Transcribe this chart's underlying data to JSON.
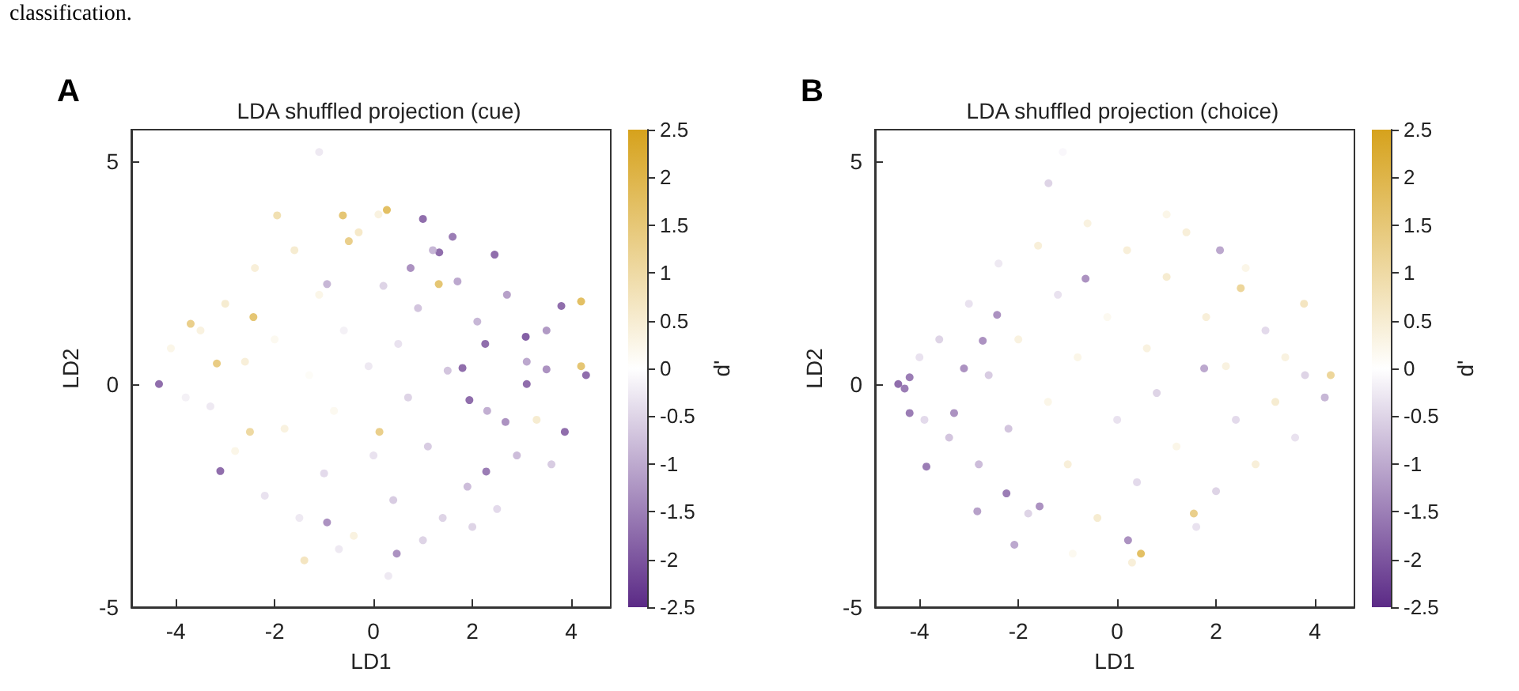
{
  "chart_data": [
    {
      "type": "scatter",
      "title": "LDA shuffled projection (cue)",
      "xlabel": "LD1",
      "ylabel": "LD2",
      "clabel": "d'",
      "annotations": [
        "classification.",
        "A"
      ],
      "marker": "circle",
      "grid": false,
      "xlim": [
        -4.9,
        4.8
      ],
      "ylim": [
        -5,
        5.7
      ],
      "xticks": [
        -4,
        -2,
        0,
        2,
        4
      ],
      "yticks": [
        -5,
        0,
        5
      ],
      "clim": [
        -2.5,
        2.5
      ],
      "cticks": [
        -2.5,
        -2,
        -1.5,
        -1,
        -0.5,
        0,
        0.5,
        1,
        1.5,
        2,
        2.5
      ],
      "x": [
        -4.34,
        -3.7,
        -1.1,
        0.27,
        1.0,
        2.45,
        4.2,
        4.2,
        4.3,
        3.8,
        -3.1,
        0.47,
        -1.4,
        0.3,
        -2.43,
        -3.17,
        3.87,
        -0.94,
        2.28,
        1.32,
        3.08,
        2.26,
        1.8,
        1.94,
        3.1,
        3.5,
        2.67,
        0.12,
        -2.5,
        -0.62,
        -1.95,
        -0.5,
        1.33,
        1.6,
        0.75,
        -0.94,
        -3.5,
        -3.3,
        -3.0,
        -2.8,
        -2.6,
        -2.4,
        -2.2,
        -2.0,
        -1.8,
        -1.6,
        -1.5,
        -1.3,
        -1.1,
        -1.0,
        -0.8,
        -0.6,
        -0.4,
        -0.3,
        -0.1,
        0.0,
        0.2,
        0.4,
        0.5,
        0.7,
        0.9,
        1.1,
        1.2,
        1.4,
        1.5,
        1.7,
        1.9,
        2.1,
        2.3,
        2.5,
        2.7,
        2.9,
        3.1,
        3.3,
        3.5,
        3.6,
        -3.8,
        -4.1,
        0.1,
        -0.7,
        1.0,
        2.0
      ],
      "values": [
        0.0,
        1.35,
        5.2,
        3.9,
        3.7,
        2.9,
        1.85,
        0.4,
        0.2,
        1.75,
        -1.95,
        -3.8,
        -3.95,
        -4.3,
        1.5,
        0.46,
        -1.07,
        -3.1,
        -1.96,
        2.24,
        1.06,
        0.9,
        0.36,
        -0.36,
        0.0,
        0.33,
        -0.85,
        -1.07,
        -1.07,
        3.78,
        3.78,
        3.2,
        2.95,
        3.3,
        2.6,
        2.24,
        1.2,
        -0.5,
        1.8,
        -1.5,
        0.5,
        2.6,
        -2.5,
        1.0,
        -1.0,
        3.0,
        -3.0,
        0.2,
        2.0,
        -2.0,
        -0.6,
        1.2,
        -3.4,
        3.4,
        0.4,
        -1.6,
        2.2,
        -2.6,
        0.9,
        -0.3,
        1.7,
        -1.4,
        3.0,
        -3.0,
        0.3,
        2.3,
        -2.3,
        1.4,
        -0.6,
        -2.8,
        2.0,
        -1.6,
        0.5,
        -0.8,
        1.2,
        -1.8,
        -0.3,
        0.8,
        3.8,
        -3.7,
        -3.5,
        -3.2
      ],
      "cvalues": [
        -2,
        1.5,
        -0.3,
        2,
        -2,
        -2,
        2,
        1.8,
        -2,
        -2,
        -2,
        -1.5,
        0.8,
        -0.3,
        1.8,
        1.6,
        -2,
        -1.5,
        -1.8,
        1.8,
        -2.2,
        -2,
        -2,
        -2,
        -2,
        -1.5,
        -1.5,
        1.5,
        1.2,
        1.8,
        1,
        1.5,
        -2,
        -1.8,
        -1.5,
        -1,
        0.4,
        -0.3,
        0.6,
        0.3,
        0.5,
        0.5,
        -0.4,
        0.2,
        0.4,
        0.6,
        -0.3,
        0.1,
        0.3,
        -0.5,
        0.2,
        -0.2,
        0.4,
        0.7,
        -0.3,
        -0.4,
        -0.6,
        -0.7,
        -0.4,
        -0.6,
        -0.8,
        -0.7,
        -1.0,
        -0.6,
        -0.8,
        -1.2,
        -0.9,
        -1.0,
        -1.1,
        -0.5,
        -1.3,
        -0.9,
        -1.2,
        0.6,
        -1.4,
        -0.7,
        -0.2,
        0.3,
        0.4,
        -0.3,
        -0.6,
        -0.6
      ]
    },
    {
      "type": "scatter",
      "title": "LDA shuffled projection (choice)",
      "xlabel": "LD1",
      "ylabel": "LD2",
      "clabel": "d'",
      "annotations": [
        "B"
      ],
      "marker": "circle",
      "grid": false,
      "xlim": [
        -4.9,
        4.8
      ],
      "ylim": [
        -5,
        5.7
      ],
      "xticks": [
        -4,
        -2,
        0,
        2,
        4
      ],
      "yticks": [
        -5,
        0,
        5
      ],
      "clim": [
        -2.5,
        2.5
      ],
      "cticks": [
        -2.5,
        -2,
        -1.5,
        -1,
        -0.5,
        0,
        0.5,
        1,
        1.5,
        2,
        2.5
      ],
      "x": [
        -4.43,
        -4.3,
        -4.2,
        -4.2,
        -3.86,
        -1.39,
        -1.1,
        0.48,
        -0.64,
        -2.24,
        -1.57,
        4.32,
        4.2,
        -3.1,
        -3.3,
        1.55,
        2.08,
        2.5,
        -2.72,
        -2.43,
        1.76,
        3.78,
        0.22,
        -2.83,
        -2.08,
        -3.6,
        -3.4,
        -3.0,
        -2.8,
        -2.6,
        -2.4,
        -2.2,
        -2.0,
        -1.8,
        -1.6,
        -1.4,
        -1.2,
        -1.0,
        -0.8,
        -0.6,
        -0.4,
        -0.2,
        0.0,
        0.2,
        0.4,
        0.6,
        0.8,
        1.0,
        1.2,
        1.4,
        1.6,
        1.8,
        2.0,
        2.2,
        2.4,
        2.6,
        2.8,
        3.0,
        3.2,
        3.4,
        3.6,
        3.8,
        -4.0,
        0.3,
        -0.9,
        1.0,
        -3.9
      ],
      "values": [
        0.0,
        -0.1,
        0.15,
        -0.65,
        -1.85,
        4.5,
        5.2,
        -3.8,
        2.36,
        -2.45,
        -2.74,
        0.2,
        -0.3,
        0.35,
        -0.65,
        -2.9,
        3.0,
        2.15,
        0.97,
        1.55,
        0.35,
        1.8,
        -3.5,
        -2.85,
        -3.6,
        1.0,
        -1.2,
        1.8,
        -1.8,
        0.2,
        2.7,
        -1.0,
        1.0,
        -2.9,
        3.1,
        -0.4,
        2.0,
        -1.8,
        0.6,
        3.6,
        -3.0,
        1.5,
        -0.8,
        3.0,
        -2.2,
        0.8,
        -0.2,
        2.4,
        -1.4,
        3.4,
        -3.2,
        1.5,
        -2.4,
        0.4,
        -0.8,
        2.6,
        -1.8,
        1.2,
        -0.4,
        0.6,
        -1.2,
        0.2,
        0.6,
        -4.0,
        -3.8,
        3.8,
        -0.8
      ],
      "cvalues": [
        -2,
        -1.8,
        -1.8,
        -1.8,
        -1.8,
        -0.6,
        -0.1,
        2,
        -1.5,
        -1.8,
        -1.5,
        1.3,
        -1,
        -1.5,
        -1.5,
        1.5,
        -1.2,
        1.3,
        -1.5,
        -1.5,
        -1.2,
        0.8,
        -1.5,
        -1.3,
        -1.2,
        -0.6,
        -0.8,
        -0.4,
        -0.9,
        -0.7,
        -0.3,
        -0.8,
        0.4,
        -0.6,
        0.5,
        0.3,
        -0.4,
        0.5,
        0.3,
        0.4,
        0.6,
        0.2,
        -0.4,
        0.5,
        -0.5,
        0.4,
        -0.6,
        0.6,
        0.3,
        0.5,
        -0.4,
        0.5,
        -0.6,
        0.4,
        -0.5,
        0.3,
        0.5,
        -0.5,
        0.6,
        0.4,
        -0.4,
        -0.6,
        -0.4,
        0.5,
        0.2,
        0.3,
        -0.5
      ]
    }
  ]
}
